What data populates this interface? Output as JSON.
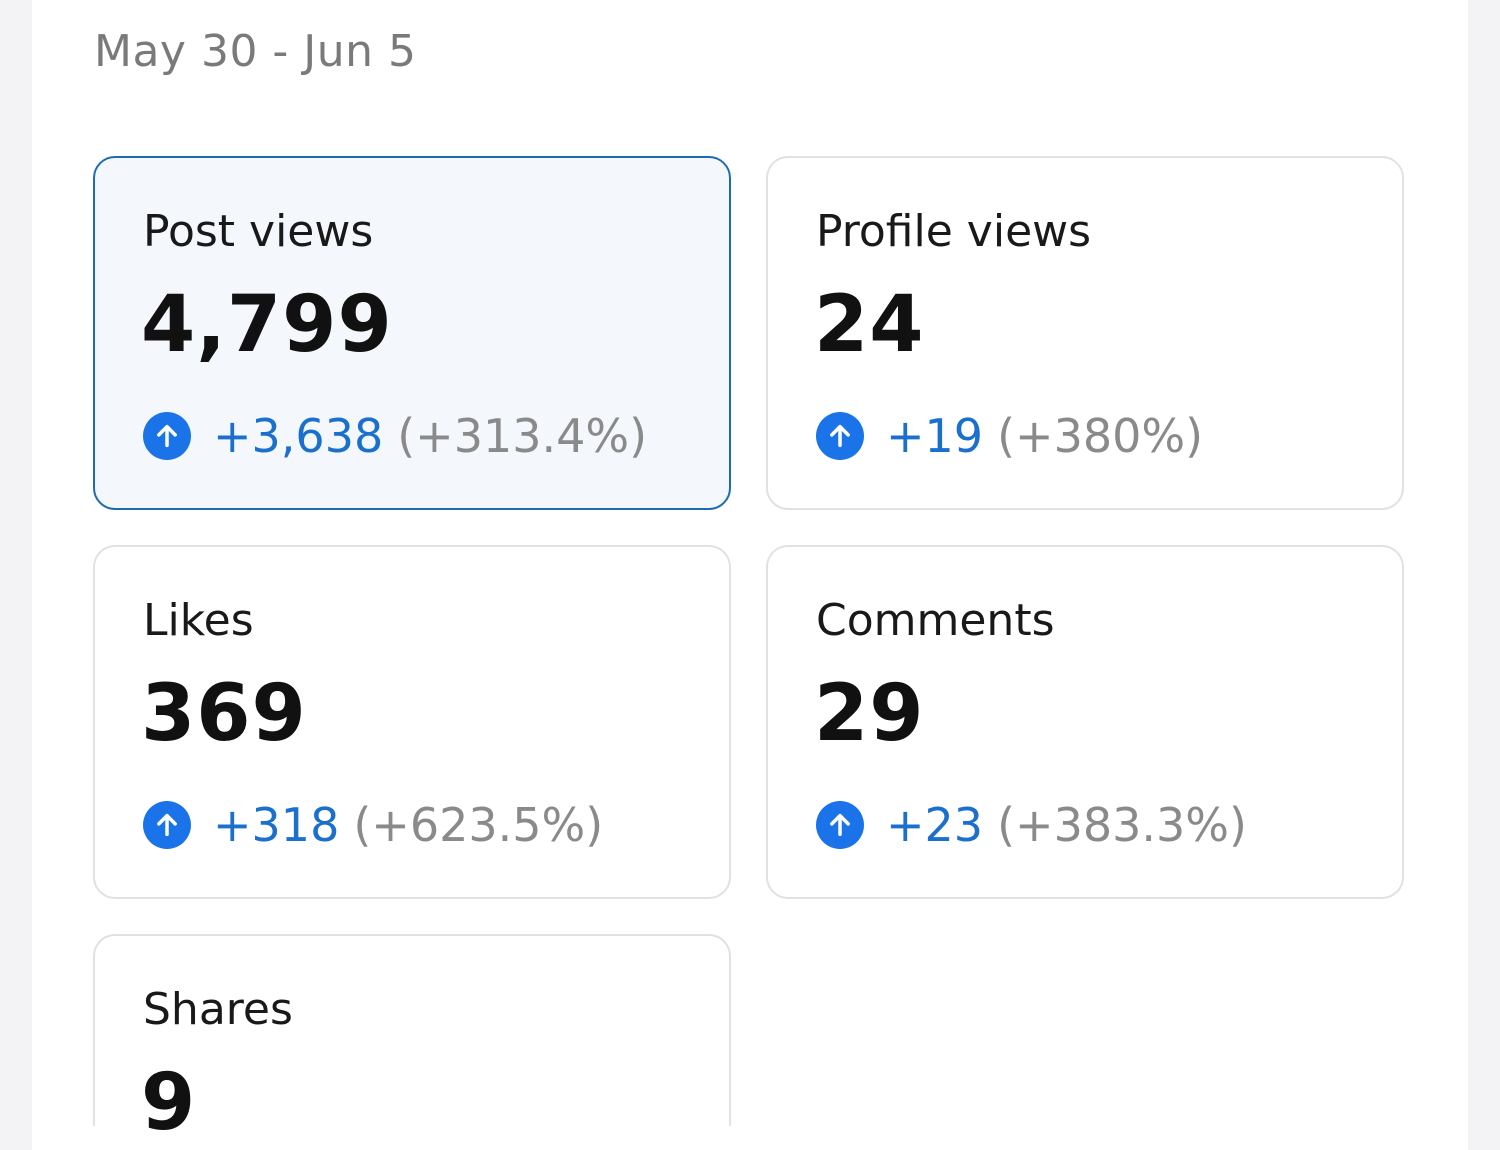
{
  "header": {
    "date_range": "May 30 - Jun 5"
  },
  "colors": {
    "accent": "#1a73e8",
    "selected_border": "#1f6bb2",
    "selected_bg": "#f4f7fc",
    "delta_text": "#1b6fcd",
    "muted_text": "#8a8a8a"
  },
  "metrics": [
    {
      "label": "Post views",
      "value": "4,799",
      "delta": "+3,638",
      "percent": "(+313.4%)",
      "icon": "arrow-up-circle-icon",
      "selected": true
    },
    {
      "label": "Profile views",
      "value": "24",
      "delta": "+19",
      "percent": "(+380%)",
      "icon": "arrow-up-circle-icon",
      "selected": false
    },
    {
      "label": "Likes",
      "value": "369",
      "delta": "+318",
      "percent": "(+623.5%)",
      "icon": "arrow-up-circle-icon",
      "selected": false
    },
    {
      "label": "Comments",
      "value": "29",
      "delta": "+23",
      "percent": "(+383.3%)",
      "icon": "arrow-up-circle-icon",
      "selected": false
    },
    {
      "label": "Shares",
      "value": "9",
      "selected": false
    }
  ]
}
